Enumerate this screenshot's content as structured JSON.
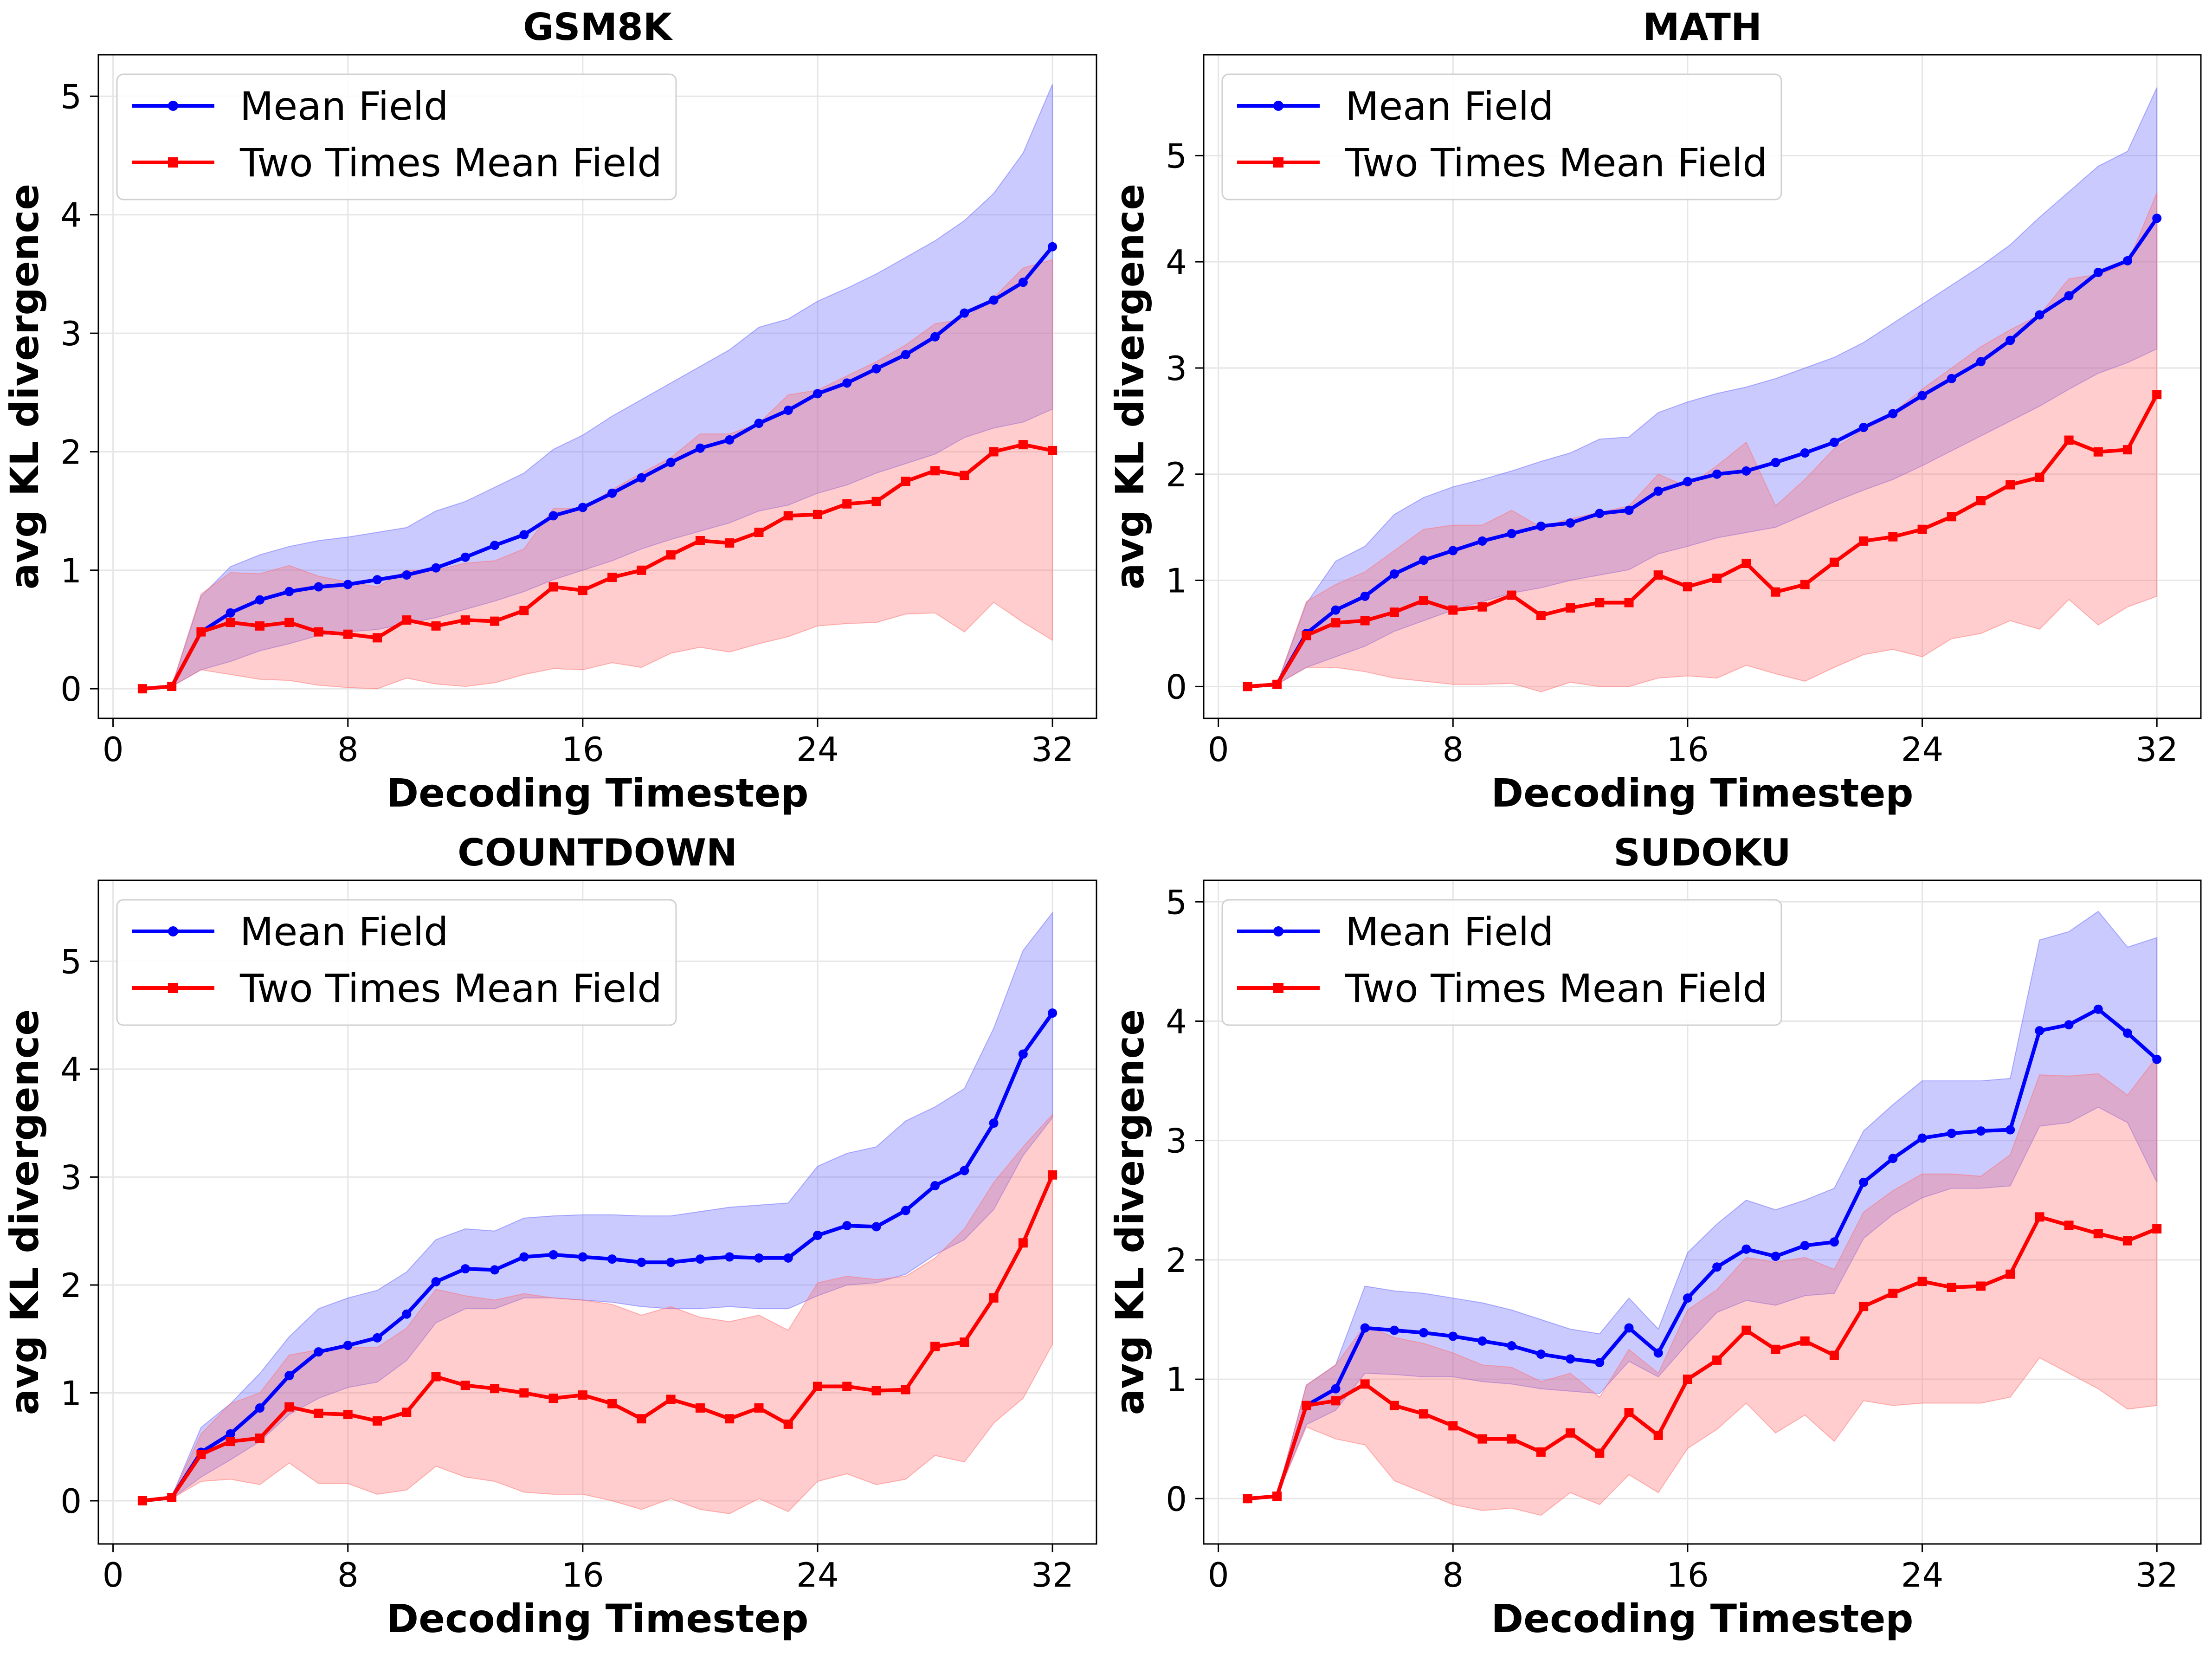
{
  "figure": {
    "colors": {
      "mean_field": "#0000ff",
      "two_times": "#ff0000",
      "mean_field_band": "#6666ff",
      "two_times_band": "#ff6f6f",
      "grid": "#e6e6e6"
    }
  },
  "chart_data": [
    {
      "type": "line",
      "title": "GSM8K",
      "xlabel": "Decoding Timestep",
      "ylabel": "avg KL divergence",
      "xlim": [
        -0.5,
        33.5
      ],
      "ylim": [
        -0.25,
        5.35
      ],
      "xticks": [
        0,
        8,
        16,
        24,
        32
      ],
      "yticks": [
        0,
        1,
        2,
        3,
        4,
        5
      ],
      "grid": true,
      "legend": "top-left",
      "x": [
        1,
        2,
        3,
        4,
        5,
        6,
        7,
        8,
        9,
        10,
        11,
        12,
        13,
        14,
        15,
        16,
        17,
        18,
        19,
        20,
        21,
        22,
        23,
        24,
        25,
        26,
        27,
        28,
        29,
        30,
        31,
        32
      ],
      "series": [
        {
          "name": "Mean Field",
          "marker": "circle",
          "values": [
            0.0,
            0.02,
            0.48,
            0.64,
            0.75,
            0.82,
            0.86,
            0.88,
            0.92,
            0.96,
            1.02,
            1.11,
            1.21,
            1.3,
            1.46,
            1.53,
            1.65,
            1.78,
            1.91,
            2.03,
            2.1,
            2.24,
            2.35,
            2.49,
            2.58,
            2.7,
            2.82,
            2.97,
            3.17,
            3.28,
            3.43,
            3.73
          ],
          "lower": [
            0.0,
            0.02,
            0.16,
            0.23,
            0.32,
            0.38,
            0.45,
            0.48,
            0.5,
            0.55,
            0.6,
            0.67,
            0.74,
            0.82,
            0.92,
            1.0,
            1.08,
            1.18,
            1.26,
            1.33,
            1.4,
            1.5,
            1.55,
            1.65,
            1.72,
            1.82,
            1.9,
            1.98,
            2.12,
            2.2,
            2.25,
            2.36
          ],
          "upper": [
            0.0,
            0.02,
            0.78,
            1.03,
            1.13,
            1.2,
            1.25,
            1.28,
            1.32,
            1.36,
            1.5,
            1.58,
            1.7,
            1.82,
            2.02,
            2.14,
            2.3,
            2.44,
            2.58,
            2.72,
            2.86,
            3.05,
            3.12,
            3.27,
            3.38,
            3.5,
            3.64,
            3.78,
            3.95,
            4.18,
            4.52,
            5.1
          ]
        },
        {
          "name": "Two Times Mean Field",
          "marker": "square",
          "values": [
            0.0,
            0.02,
            0.48,
            0.56,
            0.53,
            0.56,
            0.48,
            0.46,
            0.43,
            0.58,
            0.53,
            0.58,
            0.57,
            0.66,
            0.86,
            0.83,
            0.94,
            1.0,
            1.13,
            1.25,
            1.23,
            1.32,
            1.46,
            1.47,
            1.56,
            1.58,
            1.75,
            1.84,
            1.8,
            2.0,
            2.06,
            2.01
          ],
          "lower": [
            0.0,
            0.02,
            0.16,
            0.12,
            0.08,
            0.07,
            0.03,
            0.01,
            0.0,
            0.09,
            0.04,
            0.02,
            0.05,
            0.12,
            0.17,
            0.16,
            0.22,
            0.18,
            0.3,
            0.35,
            0.31,
            0.38,
            0.44,
            0.53,
            0.55,
            0.56,
            0.63,
            0.64,
            0.48,
            0.73,
            0.56,
            0.41
          ],
          "upper": [
            0.0,
            0.02,
            0.8,
            0.98,
            0.97,
            1.04,
            0.95,
            0.9,
            0.86,
            1.0,
            1.0,
            1.06,
            1.08,
            1.18,
            1.52,
            1.52,
            1.68,
            1.82,
            1.95,
            2.15,
            2.15,
            2.24,
            2.48,
            2.52,
            2.64,
            2.76,
            2.9,
            3.08,
            3.12,
            3.3,
            3.55,
            3.62
          ]
        }
      ]
    },
    {
      "type": "line",
      "title": "MATH",
      "xlabel": "Decoding Timestep",
      "ylabel": "avg KL divergence",
      "xlim": [
        -0.5,
        33.5
      ],
      "ylim": [
        -0.3,
        5.95
      ],
      "xticks": [
        0,
        8,
        16,
        24,
        32
      ],
      "yticks": [
        0,
        1,
        2,
        3,
        4,
        5
      ],
      "grid": true,
      "legend": "top-left",
      "x": [
        1,
        2,
        3,
        4,
        5,
        6,
        7,
        8,
        9,
        10,
        11,
        12,
        13,
        14,
        15,
        16,
        17,
        18,
        19,
        20,
        21,
        22,
        23,
        24,
        25,
        26,
        27,
        28,
        29,
        30,
        31,
        32
      ],
      "series": [
        {
          "name": "Mean Field",
          "marker": "circle",
          "values": [
            0.0,
            0.02,
            0.5,
            0.72,
            0.85,
            1.06,
            1.19,
            1.28,
            1.37,
            1.44,
            1.51,
            1.54,
            1.63,
            1.66,
            1.84,
            1.93,
            2.0,
            2.03,
            2.11,
            2.2,
            2.3,
            2.44,
            2.57,
            2.74,
            2.9,
            3.06,
            3.26,
            3.5,
            3.68,
            3.9,
            4.01,
            4.41
          ],
          "lower": [
            0.0,
            0.02,
            0.18,
            0.28,
            0.38,
            0.52,
            0.62,
            0.72,
            0.8,
            0.88,
            0.93,
            1.0,
            1.05,
            1.1,
            1.25,
            1.32,
            1.4,
            1.45,
            1.5,
            1.62,
            1.74,
            1.85,
            1.95,
            2.08,
            2.22,
            2.36,
            2.5,
            2.64,
            2.8,
            2.95,
            3.05,
            3.18
          ],
          "upper": [
            0.0,
            0.02,
            0.78,
            1.18,
            1.32,
            1.62,
            1.78,
            1.88,
            1.95,
            2.03,
            2.12,
            2.2,
            2.33,
            2.35,
            2.58,
            2.68,
            2.76,
            2.82,
            2.9,
            3.0,
            3.1,
            3.24,
            3.42,
            3.6,
            3.78,
            3.96,
            4.16,
            4.42,
            4.66,
            4.9,
            5.04,
            5.64
          ]
        },
        {
          "name": "Two Times Mean Field",
          "marker": "square",
          "values": [
            0.0,
            0.02,
            0.48,
            0.6,
            0.62,
            0.7,
            0.81,
            0.72,
            0.75,
            0.86,
            0.67,
            0.74,
            0.79,
            0.79,
            1.05,
            0.94,
            1.02,
            1.16,
            0.89,
            0.96,
            1.17,
            1.37,
            1.41,
            1.48,
            1.6,
            1.75,
            1.9,
            1.97,
            2.32,
            2.21,
            2.23,
            2.75
          ],
          "lower": [
            0.0,
            0.02,
            0.18,
            0.18,
            0.14,
            0.08,
            0.05,
            0.02,
            0.02,
            0.03,
            -0.05,
            0.04,
            0.0,
            0.0,
            0.08,
            0.1,
            0.08,
            0.2,
            0.12,
            0.05,
            0.18,
            0.3,
            0.35,
            0.28,
            0.45,
            0.5,
            0.62,
            0.54,
            0.82,
            0.58,
            0.75,
            0.85
          ],
          "upper": [
            0.0,
            0.02,
            0.8,
            0.96,
            1.08,
            1.28,
            1.48,
            1.52,
            1.52,
            1.66,
            1.5,
            1.58,
            1.64,
            1.7,
            2.0,
            1.88,
            2.08,
            2.3,
            1.7,
            1.95,
            2.24,
            2.42,
            2.58,
            2.8,
            3.0,
            3.2,
            3.36,
            3.5,
            3.84,
            3.88,
            3.98,
            4.65
          ]
        }
      ]
    },
    {
      "type": "line",
      "title": "COUNTDOWN",
      "xlabel": "Decoding Timestep",
      "ylabel": "avg KL divergence",
      "xlim": [
        -0.5,
        33.5
      ],
      "ylim": [
        -0.4,
        5.75
      ],
      "xticks": [
        0,
        8,
        16,
        24,
        32
      ],
      "yticks": [
        0,
        1,
        2,
        3,
        4,
        5
      ],
      "grid": true,
      "legend": "top-left",
      "x": [
        1,
        2,
        3,
        4,
        5,
        6,
        7,
        8,
        9,
        10,
        11,
        12,
        13,
        14,
        15,
        16,
        17,
        18,
        19,
        20,
        21,
        22,
        23,
        24,
        25,
        26,
        27,
        28,
        29,
        30,
        31,
        32
      ],
      "series": [
        {
          "name": "Mean Field",
          "marker": "circle",
          "values": [
            0.0,
            0.03,
            0.45,
            0.62,
            0.86,
            1.16,
            1.38,
            1.44,
            1.51,
            1.73,
            2.03,
            2.15,
            2.14,
            2.26,
            2.28,
            2.26,
            2.24,
            2.21,
            2.21,
            2.24,
            2.26,
            2.25,
            2.25,
            2.46,
            2.55,
            2.54,
            2.69,
            2.92,
            3.06,
            3.5,
            4.14,
            4.52
          ],
          "lower": [
            0.0,
            0.02,
            0.22,
            0.38,
            0.55,
            0.8,
            0.95,
            1.05,
            1.1,
            1.3,
            1.65,
            1.78,
            1.78,
            1.88,
            1.88,
            1.86,
            1.84,
            1.8,
            1.78,
            1.78,
            1.8,
            1.78,
            1.78,
            1.9,
            2.0,
            2.02,
            2.1,
            2.28,
            2.42,
            2.7,
            3.2,
            3.55
          ],
          "upper": [
            0.0,
            0.04,
            0.68,
            0.9,
            1.18,
            1.52,
            1.78,
            1.88,
            1.95,
            2.12,
            2.42,
            2.52,
            2.5,
            2.62,
            2.64,
            2.65,
            2.65,
            2.64,
            2.64,
            2.68,
            2.72,
            2.74,
            2.76,
            3.1,
            3.22,
            3.28,
            3.52,
            3.65,
            3.82,
            4.38,
            5.1,
            5.45
          ]
        },
        {
          "name": "Two Times Mean Field",
          "marker": "square",
          "values": [
            0.0,
            0.03,
            0.43,
            0.55,
            0.58,
            0.87,
            0.81,
            0.8,
            0.74,
            0.82,
            1.15,
            1.07,
            1.04,
            1.0,
            0.95,
            0.98,
            0.9,
            0.76,
            0.94,
            0.86,
            0.76,
            0.86,
            0.71,
            1.06,
            1.06,
            1.02,
            1.03,
            1.43,
            1.47,
            1.88,
            2.39,
            3.02
          ],
          "lower": [
            0.0,
            0.02,
            0.18,
            0.2,
            0.15,
            0.35,
            0.16,
            0.16,
            0.06,
            0.1,
            0.32,
            0.22,
            0.18,
            0.08,
            0.06,
            0.06,
            0.0,
            -0.08,
            0.02,
            -0.08,
            -0.12,
            0.02,
            -0.1,
            0.18,
            0.25,
            0.15,
            0.2,
            0.42,
            0.36,
            0.72,
            0.95,
            1.45
          ],
          "upper": [
            0.0,
            0.04,
            0.62,
            0.9,
            1.0,
            1.35,
            1.4,
            1.42,
            1.42,
            1.6,
            1.96,
            1.9,
            1.86,
            1.92,
            1.88,
            1.86,
            1.82,
            1.72,
            1.8,
            1.7,
            1.66,
            1.72,
            1.58,
            2.02,
            2.08,
            2.05,
            2.08,
            2.25,
            2.52,
            2.95,
            3.28,
            3.58
          ]
        }
      ]
    },
    {
      "type": "line",
      "title": "SUDOKU",
      "xlabel": "Decoding Timestep",
      "ylabel": "avg KL divergence",
      "xlim": [
        -0.5,
        33.5
      ],
      "ylim": [
        -0.38,
        5.18
      ],
      "xticks": [
        0,
        8,
        16,
        24,
        32
      ],
      "yticks": [
        0,
        1,
        2,
        3,
        4,
        5
      ],
      "grid": true,
      "legend": "top-left",
      "x": [
        1,
        2,
        3,
        4,
        5,
        6,
        7,
        8,
        9,
        10,
        11,
        12,
        13,
        14,
        15,
        16,
        17,
        18,
        19,
        20,
        21,
        22,
        23,
        24,
        25,
        26,
        27,
        28,
        29,
        30,
        31,
        32
      ],
      "series": [
        {
          "name": "Mean Field",
          "marker": "circle",
          "values": [
            0.0,
            0.02,
            0.78,
            0.92,
            1.43,
            1.41,
            1.39,
            1.36,
            1.32,
            1.28,
            1.21,
            1.17,
            1.14,
            1.43,
            1.22,
            1.68,
            1.94,
            2.09,
            2.03,
            2.12,
            2.15,
            2.65,
            2.85,
            3.02,
            3.06,
            3.08,
            3.09,
            3.92,
            3.97,
            4.1,
            3.9,
            3.68
          ],
          "lower": [
            0.0,
            0.02,
            0.62,
            0.74,
            1.05,
            1.04,
            1.02,
            1.02,
            0.98,
            0.96,
            0.92,
            0.9,
            0.88,
            1.15,
            1.02,
            1.3,
            1.56,
            1.66,
            1.62,
            1.7,
            1.72,
            2.18,
            2.38,
            2.52,
            2.6,
            2.6,
            2.62,
            3.12,
            3.15,
            3.28,
            3.15,
            2.65
          ],
          "upper": [
            0.0,
            0.02,
            0.95,
            1.12,
            1.78,
            1.74,
            1.72,
            1.68,
            1.64,
            1.58,
            1.5,
            1.42,
            1.38,
            1.68,
            1.42,
            2.06,
            2.3,
            2.5,
            2.42,
            2.5,
            2.6,
            3.08,
            3.3,
            3.5,
            3.5,
            3.5,
            3.52,
            4.68,
            4.75,
            4.92,
            4.62,
            4.7
          ]
        },
        {
          "name": "Two Times Mean Field",
          "marker": "square",
          "values": [
            0.0,
            0.02,
            0.78,
            0.82,
            0.96,
            0.78,
            0.71,
            0.61,
            0.5,
            0.5,
            0.39,
            0.55,
            0.38,
            0.72,
            0.53,
            1.0,
            1.16,
            1.41,
            1.25,
            1.32,
            1.2,
            1.61,
            1.72,
            1.82,
            1.77,
            1.78,
            1.88,
            2.36,
            2.29,
            2.22,
            2.16,
            2.26
          ],
          "lower": [
            0.0,
            0.02,
            0.6,
            0.5,
            0.45,
            0.15,
            0.05,
            -0.05,
            -0.1,
            -0.08,
            -0.14,
            0.05,
            -0.05,
            0.2,
            0.05,
            0.42,
            0.58,
            0.8,
            0.55,
            0.7,
            0.48,
            0.82,
            0.78,
            0.8,
            0.8,
            0.8,
            0.85,
            1.18,
            1.05,
            0.92,
            0.75,
            0.78
          ],
          "upper": [
            0.0,
            0.02,
            0.95,
            1.12,
            1.45,
            1.35,
            1.3,
            1.22,
            1.12,
            1.1,
            0.98,
            1.05,
            0.85,
            1.25,
            1.05,
            1.58,
            1.75,
            2.02,
            1.98,
            2.02,
            1.92,
            2.4,
            2.58,
            2.72,
            2.72,
            2.7,
            2.88,
            3.55,
            3.54,
            3.56,
            3.38,
            3.7
          ]
        }
      ]
    }
  ]
}
